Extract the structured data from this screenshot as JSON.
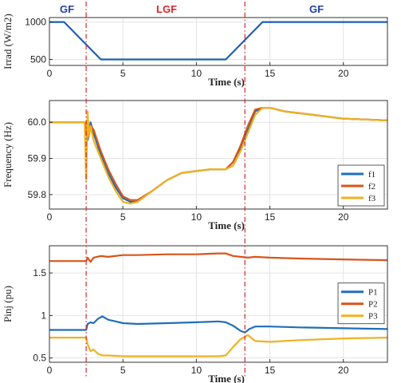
{
  "regions": [
    {
      "label": "GF",
      "color": "#1f3fa0"
    },
    {
      "label": "LGF",
      "color": "#d8262a"
    },
    {
      "label": "GF",
      "color": "#1f3fa0"
    }
  ],
  "chart_data": [
    {
      "type": "line",
      "xlabel": "Time (s)",
      "ylabel": "Irrad (W/m2)",
      "xlim": [
        0,
        23
      ],
      "ylim": [
        420,
        1060
      ],
      "xticks": [
        0,
        5,
        10,
        15,
        20
      ],
      "yticks": [
        500,
        1000
      ],
      "grid": true,
      "series": [
        {
          "color": "#1f5fb0",
          "x": [
            0,
            1.0,
            3.5,
            12.0,
            14.5,
            23
          ],
          "y": [
            1000,
            1000,
            500,
            500,
            1000,
            1000
          ]
        }
      ]
    },
    {
      "type": "line",
      "xlabel": "Time (s)",
      "ylabel": "Frequency (Hz)",
      "xlim": [
        0,
        23
      ],
      "ylim": [
        59.76,
        60.06
      ],
      "xticks": [
        0,
        5,
        10,
        15,
        20
      ],
      "yticks": [
        59.8,
        59.9,
        60.0
      ],
      "yticklabels": [
        "59.8",
        "59.9",
        "60.0"
      ],
      "grid": true,
      "legend": "bottom-right",
      "series": [
        {
          "name": "f1",
          "color": "#1f6fb8",
          "x": [
            0,
            2.4,
            2.6,
            2.8,
            3.0,
            3.5,
            4.0,
            4.5,
            5.0,
            5.5,
            6.0,
            7.0,
            8.0,
            9.0,
            10.0,
            11.0,
            12.0,
            12.5,
            13.0,
            13.5,
            14.0,
            14.5,
            15,
            16,
            18,
            20,
            23
          ],
          "y": [
            60.0,
            60.0,
            59.95,
            60.0,
            59.97,
            59.91,
            59.86,
            59.82,
            59.79,
            59.78,
            59.78,
            59.81,
            59.84,
            59.86,
            59.865,
            59.87,
            59.87,
            59.89,
            59.93,
            59.98,
            60.03,
            60.04,
            60.04,
            60.03,
            60.02,
            60.01,
            60.005
          ]
        },
        {
          "name": "f2",
          "color": "#d9541a",
          "x": [
            0,
            2.4,
            2.6,
            2.8,
            3.0,
            3.5,
            4.0,
            4.5,
            5.0,
            5.5,
            6.0,
            7.0,
            8.0,
            9.0,
            10.0,
            11.0,
            12.0,
            12.5,
            13.0,
            13.5,
            14.0,
            14.5,
            15,
            16,
            18,
            20,
            23
          ],
          "y": [
            60.0,
            60.0,
            59.96,
            59.99,
            59.98,
            59.92,
            59.87,
            59.83,
            59.795,
            59.785,
            59.785,
            59.81,
            59.84,
            59.86,
            59.865,
            59.87,
            59.87,
            59.89,
            59.935,
            59.99,
            60.035,
            60.04,
            60.04,
            60.03,
            60.02,
            60.01,
            60.005
          ]
        },
        {
          "name": "f3",
          "color": "#eeb220",
          "x": [
            0,
            2.4,
            2.5,
            2.6,
            2.7,
            2.8,
            3.0,
            3.5,
            4.0,
            4.5,
            5.0,
            5.5,
            6.0,
            7.0,
            8.0,
            9.0,
            10.0,
            11.0,
            12.0,
            12.5,
            13.0,
            13.5,
            14.0,
            14.5,
            15,
            16,
            18,
            20,
            23
          ],
          "y": [
            60.0,
            60.0,
            59.84,
            60.03,
            59.96,
            59.99,
            59.95,
            59.9,
            59.85,
            59.81,
            59.78,
            59.775,
            59.78,
            59.81,
            59.84,
            59.86,
            59.865,
            59.87,
            59.87,
            59.88,
            59.92,
            59.97,
            60.02,
            60.04,
            60.04,
            60.03,
            60.02,
            60.01,
            60.005
          ]
        }
      ]
    },
    {
      "type": "line",
      "xlabel": "Time (s)",
      "ylabel": "Pinj (pu)",
      "xlim": [
        0,
        23
      ],
      "ylim": [
        0.45,
        1.82
      ],
      "xticks": [
        0,
        5,
        10,
        15,
        20
      ],
      "yticks": [
        0.5,
        1.0,
        1.5
      ],
      "yticklabels": [
        "0.5",
        "1",
        "1.5"
      ],
      "grid": true,
      "legend": "middle-right",
      "series": [
        {
          "name": "P1",
          "color": "#1f6fb8",
          "x": [
            0,
            2.5,
            2.6,
            2.8,
            3.0,
            3.3,
            3.6,
            4.0,
            4.5,
            5.0,
            6,
            8,
            10,
            11.5,
            12.0,
            12.5,
            13.0,
            13.3,
            13.6,
            14.0,
            15,
            17,
            20,
            23
          ],
          "y": [
            0.83,
            0.83,
            0.9,
            0.92,
            0.91,
            0.96,
            0.99,
            0.95,
            0.93,
            0.91,
            0.9,
            0.91,
            0.92,
            0.93,
            0.92,
            0.88,
            0.82,
            0.8,
            0.84,
            0.87,
            0.87,
            0.86,
            0.85,
            0.84
          ]
        },
        {
          "name": "P2",
          "color": "#d9541a",
          "x": [
            0,
            2.5,
            2.6,
            2.8,
            3.0,
            3.5,
            4.0,
            5,
            6,
            8,
            10,
            11.5,
            12.0,
            12.5,
            13.0,
            13.5,
            14.0,
            15,
            17,
            20,
            23
          ],
          "y": [
            1.64,
            1.64,
            1.68,
            1.63,
            1.68,
            1.7,
            1.69,
            1.71,
            1.71,
            1.72,
            1.72,
            1.73,
            1.73,
            1.7,
            1.69,
            1.68,
            1.69,
            1.68,
            1.67,
            1.66,
            1.65
          ]
        },
        {
          "name": "P3",
          "color": "#eeb220",
          "x": [
            0,
            2.5,
            2.6,
            2.8,
            3.0,
            3.3,
            3.6,
            4.0,
            5.0,
            6,
            8,
            10,
            11.5,
            12.0,
            12.5,
            13.0,
            13.5,
            14.0,
            15,
            17,
            20,
            23
          ],
          "y": [
            0.74,
            0.74,
            0.66,
            0.58,
            0.6,
            0.55,
            0.53,
            0.53,
            0.52,
            0.52,
            0.52,
            0.52,
            0.52,
            0.53,
            0.63,
            0.72,
            0.77,
            0.7,
            0.69,
            0.71,
            0.73,
            0.74
          ]
        }
      ]
    }
  ],
  "dividers": {
    "x": [
      2.5,
      13.3
    ],
    "color": "#d8262a"
  }
}
